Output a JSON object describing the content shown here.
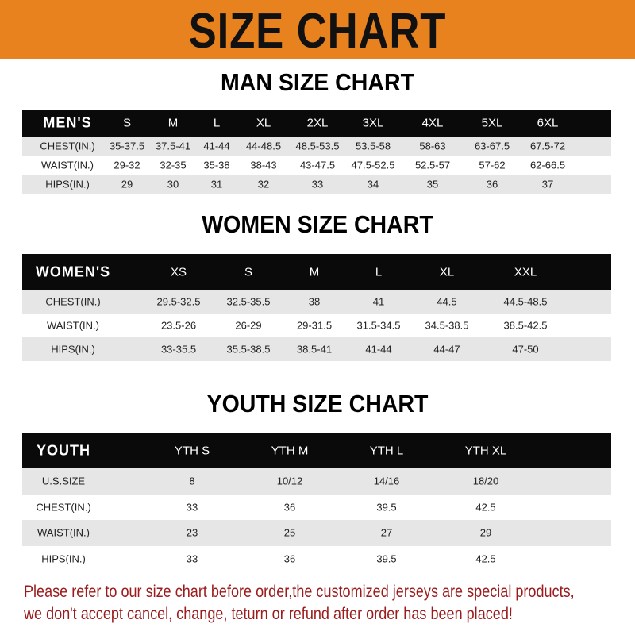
{
  "banner": {
    "title": "SIZE CHART",
    "color": "#E8821E"
  },
  "men": {
    "title": "MAN SIZE CHART",
    "header": [
      "MEN'S",
      "S",
      "M",
      "L",
      "XL",
      "2XL",
      "3XL",
      "4XL",
      "5XL",
      "6XL"
    ],
    "rows": [
      [
        "CHEST(IN.)",
        "35-37.5",
        "37.5-41",
        "41-44",
        "44-48.5",
        "48.5-53.5",
        "53.5-58",
        "58-63",
        "63-67.5",
        "67.5-72"
      ],
      [
        "WAIST(IN.)",
        "29-32",
        "32-35",
        "35-38",
        "38-43",
        "43-47.5",
        "47.5-52.5",
        "52.5-57",
        "57-62",
        "62-66.5"
      ],
      [
        "HIPS(IN.)",
        "29",
        "30",
        "31",
        "32",
        "33",
        "34",
        "35",
        "36",
        "37"
      ]
    ]
  },
  "women": {
    "title": "WOMEN SIZE CHART",
    "header": [
      "WOMEN'S",
      "XS",
      "S",
      "M",
      "L",
      "XL",
      "XXL"
    ],
    "rows": [
      [
        "CHEST(IN.)",
        "29.5-32.5",
        "32.5-35.5",
        "38",
        "41",
        "44.5",
        "44.5-48.5"
      ],
      [
        "WAIST(IN.)",
        "23.5-26",
        "26-29",
        "29-31.5",
        "31.5-34.5",
        "34.5-38.5",
        "38.5-42.5"
      ],
      [
        "HIPS(IN.)",
        "33-35.5",
        "35.5-38.5",
        "38.5-41",
        "41-44",
        "44-47",
        "47-50"
      ]
    ]
  },
  "youth": {
    "title": "YOUTH SIZE CHART",
    "header": [
      "YOUTH",
      "YTH S",
      "YTH M",
      "YTH L",
      "YTH XL"
    ],
    "rows": [
      [
        "U.S.SIZE",
        "8",
        "10/12",
        "14/16",
        "18/20"
      ],
      [
        "CHEST(IN.)",
        "33",
        "36",
        "39.5",
        "42.5"
      ],
      [
        "WAIST(IN.)",
        "23",
        "25",
        "27",
        "29"
      ],
      [
        "HIPS(IN.)",
        "33",
        "36",
        "39.5",
        "42.5"
      ]
    ]
  },
  "note": {
    "line1": "Please refer to our size chart before order,the customized jerseys are special products,",
    "line2": "we don't accept cancel, change, teturn or refund after order has been placed!",
    "color": "#9b1c1c"
  }
}
